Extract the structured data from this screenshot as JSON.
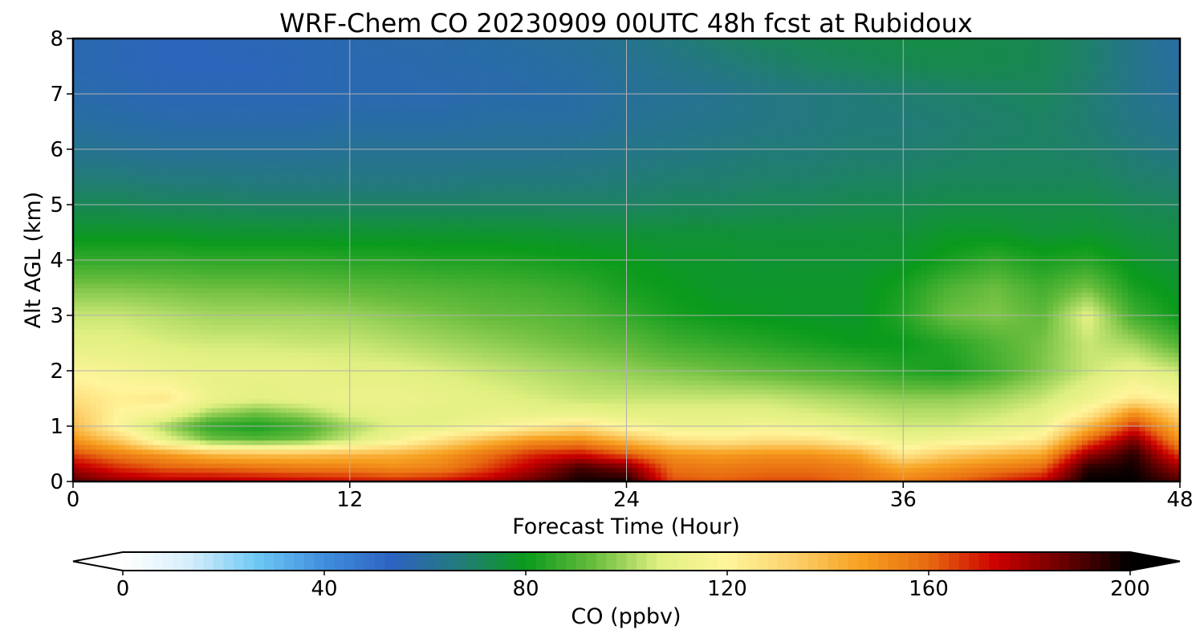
{
  "chart_data": {
    "type": "heatmap",
    "title": "WRF-Chem CO  20230909 00UTC 48h fcst at Rubidoux",
    "xlabel": "Forecast Time (Hour)",
    "ylabel": "Alt AGL (km)",
    "xlim": [
      0,
      48
    ],
    "ylim": [
      0,
      8
    ],
    "xticks": [
      "0",
      "12",
      "24",
      "36",
      "48"
    ],
    "yticks": [
      "0",
      "1",
      "2",
      "3",
      "4",
      "5",
      "6",
      "7",
      "8"
    ],
    "grid": true,
    "x": [
      0,
      2,
      4,
      6,
      8,
      10,
      12,
      14,
      16,
      18,
      20,
      22,
      24,
      26,
      28,
      30,
      32,
      34,
      36,
      38,
      40,
      42,
      44,
      46,
      48
    ],
    "y": [
      0,
      0.25,
      0.5,
      0.75,
      1,
      1.25,
      1.5,
      2,
      2.5,
      3,
      3.5,
      4,
      4.5,
      5,
      5.5,
      6,
      6.5,
      7,
      7.5,
      8
    ],
    "z": [
      [
        190,
        182,
        178,
        178,
        176,
        174,
        172,
        170,
        172,
        178,
        188,
        198,
        198,
        164,
        162,
        164,
        164,
        160,
        155,
        160,
        168,
        175,
        200,
        200,
        190
      ],
      [
        178,
        168,
        162,
        160,
        158,
        156,
        155,
        152,
        155,
        165,
        178,
        192,
        185,
        158,
        156,
        158,
        158,
        155,
        145,
        150,
        155,
        160,
        195,
        198,
        180
      ],
      [
        165,
        155,
        148,
        140,
        138,
        138,
        140,
        142,
        148,
        158,
        168,
        172,
        162,
        150,
        148,
        150,
        150,
        145,
        125,
        135,
        140,
        145,
        180,
        195,
        165
      ],
      [
        150,
        135,
        110,
        95,
        92,
        95,
        105,
        115,
        128,
        140,
        150,
        152,
        140,
        128,
        125,
        128,
        128,
        120,
        112,
        115,
        118,
        125,
        160,
        185,
        150
      ],
      [
        140,
        118,
        100,
        85,
        82,
        88,
        100,
        108,
        110,
        115,
        122,
        128,
        118,
        112,
        112,
        115,
        112,
        108,
        105,
        105,
        108,
        112,
        140,
        168,
        140
      ],
      [
        135,
        120,
        115,
        100,
        95,
        100,
        108,
        110,
        108,
        110,
        110,
        110,
        108,
        108,
        108,
        108,
        106,
        104,
        102,
        102,
        104,
        108,
        122,
        150,
        130
      ],
      [
        128,
        122,
        125,
        112,
        108,
        110,
        112,
        112,
        110,
        108,
        106,
        104,
        104,
        104,
        104,
        104,
        102,
        100,
        98,
        98,
        100,
        104,
        112,
        125,
        118
      ],
      [
        118,
        116,
        112,
        110,
        110,
        110,
        108,
        108,
        106,
        104,
        102,
        100,
        98,
        96,
        94,
        92,
        90,
        88,
        84,
        82,
        88,
        96,
        104,
        110,
        104
      ],
      [
        108,
        108,
        106,
        105,
        105,
        104,
        104,
        102,
        100,
        98,
        96,
        94,
        92,
        88,
        86,
        84,
        82,
        80,
        80,
        84,
        90,
        95,
        104,
        100,
        90
      ],
      [
        104,
        104,
        102,
        100,
        100,
        100,
        99,
        97,
        95,
        93,
        92,
        90,
        86,
        82,
        80,
        79,
        78,
        78,
        84,
        94,
        96,
        92,
        108,
        88,
        80
      ],
      [
        96,
        96,
        95,
        94,
        94,
        93,
        92,
        91,
        90,
        89,
        88,
        86,
        82,
        80,
        78,
        78,
        78,
        78,
        82,
        90,
        94,
        88,
        95,
        82,
        78
      ],
      [
        86,
        86,
        86,
        85,
        85,
        85,
        84,
        84,
        83,
        83,
        82,
        81,
        80,
        78,
        78,
        77,
        77,
        77,
        78,
        82,
        86,
        82,
        84,
        78,
        76
      ],
      [
        78,
        78,
        78,
        77,
        77,
        77,
        77,
        77,
        77,
        77,
        77,
        76,
        76,
        76,
        76,
        76,
        76,
        76,
        76,
        78,
        78,
        76,
        77,
        75,
        74
      ],
      [
        72,
        72,
        71,
        71,
        70,
        70,
        70,
        70,
        70,
        70,
        70,
        70,
        70,
        71,
        71,
        72,
        72,
        73,
        73,
        74,
        74,
        74,
        74,
        72,
        71
      ],
      [
        67,
        67,
        66,
        66,
        65,
        65,
        65,
        65,
        65,
        66,
        66,
        66,
        67,
        68,
        68,
        69,
        69,
        70,
        70,
        71,
        71,
        71,
        71,
        69,
        68
      ],
      [
        63,
        62,
        61,
        61,
        61,
        61,
        62,
        62,
        62,
        62,
        62,
        63,
        64,
        65,
        66,
        67,
        67,
        68,
        68,
        69,
        70,
        70,
        69,
        67,
        65
      ],
      [
        60,
        59,
        58,
        58,
        58,
        58,
        59,
        59,
        59,
        60,
        60,
        60,
        62,
        63,
        64,
        65,
        66,
        67,
        67,
        68,
        69,
        70,
        68,
        65,
        63
      ],
      [
        58,
        57,
        56,
        56,
        56,
        56,
        57,
        57,
        57,
        58,
        58,
        59,
        61,
        62,
        63,
        65,
        66,
        67,
        68,
        69,
        70,
        71,
        68,
        64,
        61
      ],
      [
        57,
        56,
        55,
        55,
        55,
        56,
        57,
        57,
        58,
        58,
        59,
        60,
        62,
        64,
        66,
        68,
        70,
        71,
        72,
        73,
        73,
        72,
        69,
        64,
        60
      ],
      [
        57,
        56,
        55,
        55,
        56,
        56,
        57,
        58,
        58,
        59,
        60,
        61,
        63,
        66,
        69,
        71,
        72,
        73,
        74,
        74,
        73,
        72,
        69,
        64,
        59
      ]
    ],
    "colorbar": {
      "label": "CO  (ppbv)",
      "ticks": [
        "0",
        "40",
        "80",
        "120",
        "160",
        "200"
      ],
      "range": [
        0,
        200
      ],
      "extend": "both",
      "colors": [
        "#ffffff",
        "#d5eefb",
        "#6ec8f5",
        "#3f8edb",
        "#2d63c3",
        "#237a7b",
        "#0a9a1c",
        "#67bc3d",
        "#e0f080",
        "#fff59b",
        "#fcd06b",
        "#f7a020",
        "#e86a10",
        "#cc0000",
        "#6a0000",
        "#000000"
      ]
    }
  }
}
